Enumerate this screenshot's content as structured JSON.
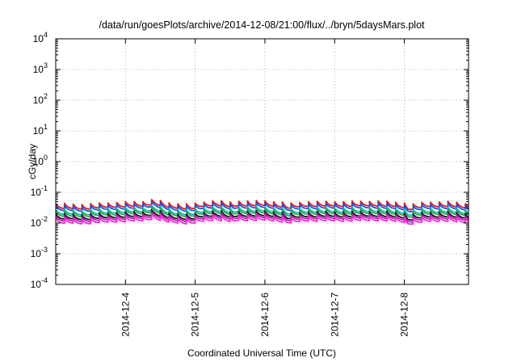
{
  "chart_data": {
    "type": "line",
    "title": "/data/run/goesPlots/archive/2014-12-08/21:00/flux/../bryn/5daysMars.plot",
    "xlabel": "Coordinated Universal Time (UTC)",
    "ylabel": "cGy/day",
    "yscale": "log",
    "ylim": [
      0.0001,
      10000
    ],
    "xlim": [
      3.0,
      8.92
    ],
    "y_ticks": [
      {
        "exp": 4,
        "base": "10",
        "sup": "4"
      },
      {
        "exp": 3,
        "base": "10",
        "sup": "3"
      },
      {
        "exp": 2,
        "base": "10",
        "sup": "2"
      },
      {
        "exp": 1,
        "base": "10",
        "sup": "1"
      },
      {
        "exp": 0,
        "base": "10",
        "sup": "0"
      },
      {
        "exp": -1,
        "base": "10",
        "sup": "-1"
      },
      {
        "exp": -2,
        "base": "10",
        "sup": "-2"
      },
      {
        "exp": -3,
        "base": "10",
        "sup": "-3"
      },
      {
        "exp": -4,
        "base": "10",
        "sup": "-4"
      }
    ],
    "x_ticks": [
      {
        "x": 4,
        "label": "2014-12-4"
      },
      {
        "x": 5,
        "label": "2014-12-5"
      },
      {
        "x": 6,
        "label": "2014-12-6"
      },
      {
        "x": 7,
        "label": "2014-12-7"
      },
      {
        "x": 8,
        "label": "2014-12-8"
      }
    ],
    "grid": true,
    "legend": "none",
    "sawtooth_period_days": 0.125,
    "sawtooth_drop_ratio": 0.68,
    "modulation_points": [
      [
        3.0,
        0.9
      ],
      [
        3.4,
        0.85
      ],
      [
        3.9,
        1.0
      ],
      [
        4.25,
        1.05
      ],
      [
        4.4,
        1.25
      ],
      [
        4.6,
        0.95
      ],
      [
        4.95,
        0.85
      ],
      [
        5.1,
        1.0
      ],
      [
        5.3,
        1.15
      ],
      [
        5.55,
        0.95
      ],
      [
        5.62,
        1.1
      ],
      [
        6.0,
        1.1
      ],
      [
        6.25,
        1.0
      ],
      [
        6.32,
        0.88
      ],
      [
        6.6,
        1.05
      ],
      [
        7.0,
        1.05
      ],
      [
        7.3,
        1.05
      ],
      [
        7.6,
        1.1
      ],
      [
        8.0,
        0.95
      ],
      [
        8.05,
        0.8
      ],
      [
        8.3,
        1.0
      ],
      [
        8.6,
        1.05
      ],
      [
        8.92,
        0.9
      ]
    ],
    "series": [
      {
        "color": "#ee1111",
        "level": 0.048
      },
      {
        "color": "#1155ee",
        "level": 0.041
      },
      {
        "color": "#11bbbb",
        "level": 0.031
      },
      {
        "color": "#22aa44",
        "level": 0.027
      },
      {
        "color": "#111111",
        "level": 0.022
      },
      {
        "color": "#aa22aa",
        "level": 0.019
      },
      {
        "color": "#ff22dd",
        "level": 0.016
      }
    ]
  }
}
